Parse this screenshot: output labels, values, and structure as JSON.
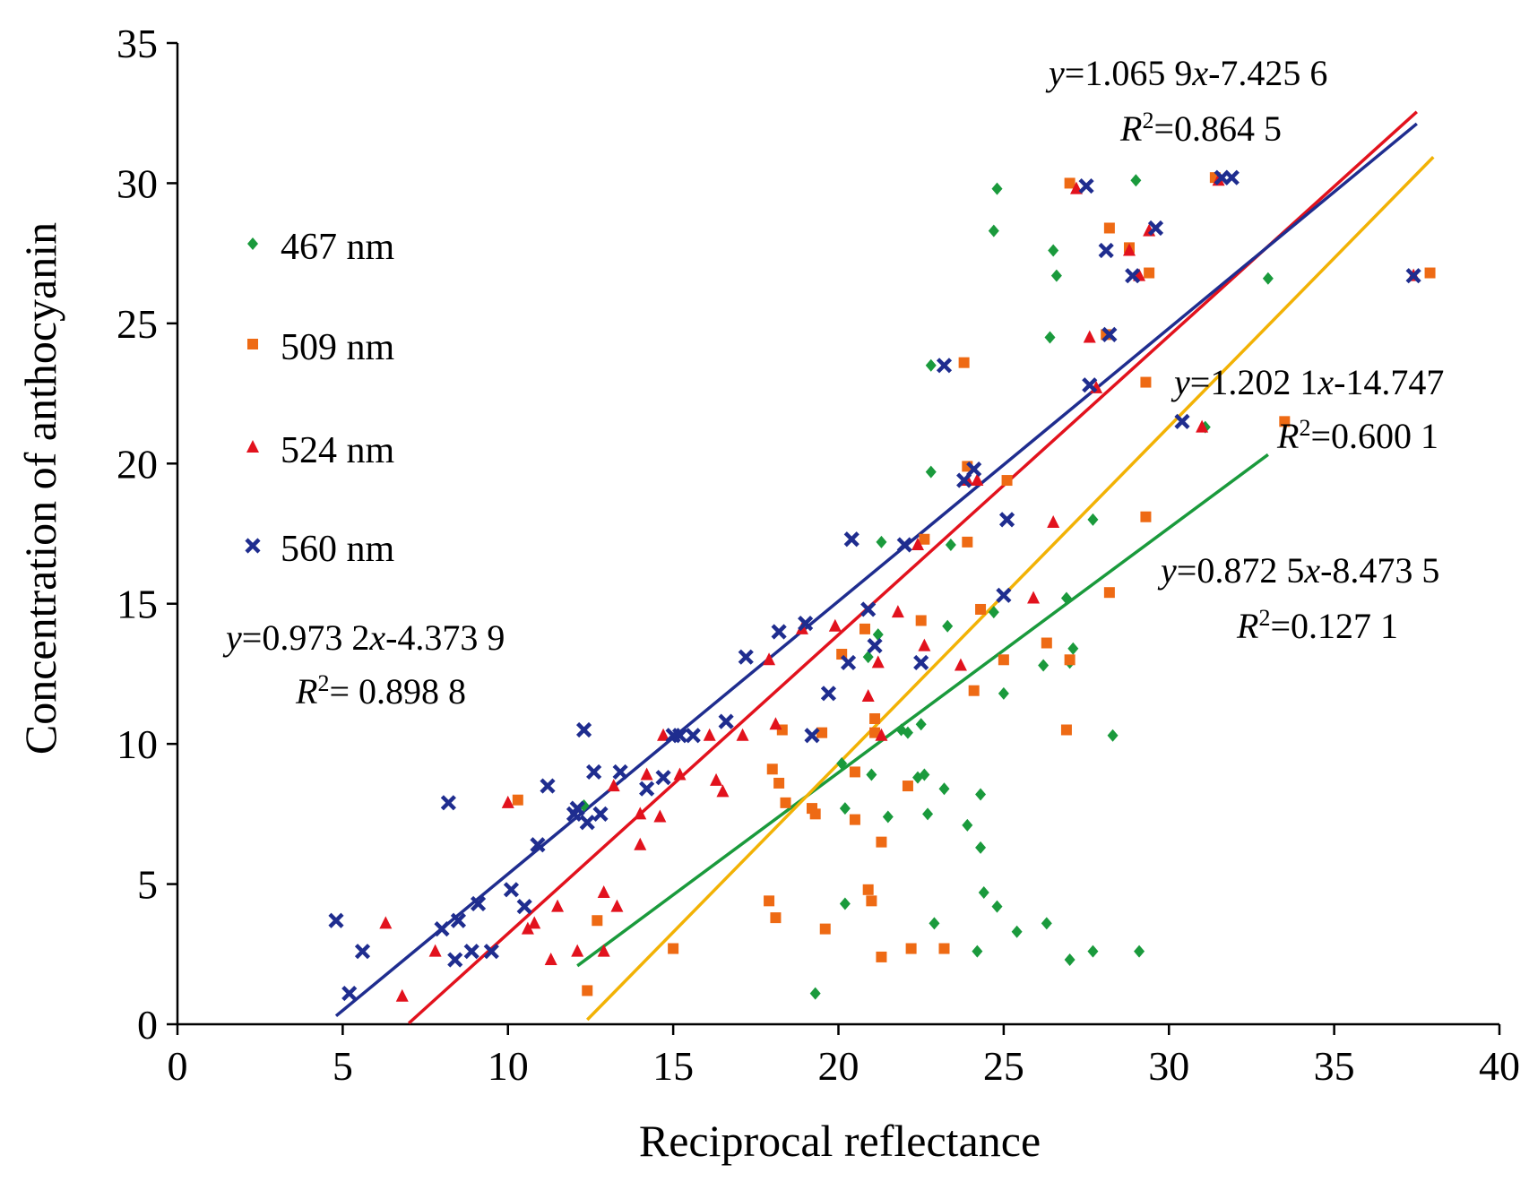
{
  "chart_data": {
    "type": "scatter",
    "title": "",
    "xlabel": "Reciprocal reflectance",
    "ylabel": "Concentration of anthocyanin",
    "xlim": [
      0,
      40
    ],
    "ylim": [
      0,
      35
    ],
    "xticks": [
      "0",
      "5",
      "10",
      "15",
      "20",
      "25",
      "30",
      "35",
      "40"
    ],
    "yticks": [
      "0",
      "5",
      "10",
      "15",
      "20",
      "25",
      "30",
      "35"
    ],
    "grid": false,
    "legend_position": "left",
    "series": [
      {
        "name": "467 nm",
        "color": "#1a9a3c",
        "marker": "diamond",
        "points": [
          [
            12.3,
            7.8
          ],
          [
            19.3,
            1.1
          ],
          [
            20.1,
            9.3
          ],
          [
            20.2,
            7.7
          ],
          [
            20.2,
            4.3
          ],
          [
            20.9,
            13.1
          ],
          [
            21.0,
            8.9
          ],
          [
            21.2,
            13.9
          ],
          [
            21.3,
            17.2
          ],
          [
            21.5,
            7.4
          ],
          [
            21.9,
            10.5
          ],
          [
            22.1,
            10.4
          ],
          [
            22.4,
            8.8
          ],
          [
            22.5,
            10.7
          ],
          [
            22.6,
            8.9
          ],
          [
            22.7,
            7.5
          ],
          [
            22.8,
            23.5
          ],
          [
            22.8,
            19.7
          ],
          [
            22.9,
            3.6
          ],
          [
            23.2,
            8.4
          ],
          [
            23.3,
            14.2
          ],
          [
            23.4,
            17.1
          ],
          [
            23.9,
            7.1
          ],
          [
            24.2,
            2.6
          ],
          [
            24.3,
            8.2
          ],
          [
            24.3,
            6.3
          ],
          [
            24.4,
            4.7
          ],
          [
            24.7,
            28.3
          ],
          [
            24.8,
            29.8
          ],
          [
            24.8,
            4.2
          ],
          [
            24.7,
            14.7
          ],
          [
            25.0,
            11.8
          ],
          [
            25.4,
            3.3
          ],
          [
            26.2,
            12.8
          ],
          [
            26.3,
            3.6
          ],
          [
            26.4,
            24.5
          ],
          [
            26.5,
            27.6
          ],
          [
            26.6,
            26.7
          ],
          [
            26.9,
            15.2
          ],
          [
            27.0,
            12.9
          ],
          [
            27.1,
            13.4
          ],
          [
            27.0,
            2.3
          ],
          [
            27.7,
            18.0
          ],
          [
            27.7,
            2.6
          ],
          [
            28.3,
            10.3
          ],
          [
            29.0,
            30.1
          ],
          [
            29.1,
            2.6
          ],
          [
            31.1,
            21.3
          ],
          [
            33.0,
            26.6
          ]
        ]
      },
      {
        "name": "509 nm",
        "color": "#ee6a14",
        "marker": "square",
        "points": [
          [
            10.3,
            8.0
          ],
          [
            12.4,
            1.2
          ],
          [
            12.7,
            3.7
          ],
          [
            15.0,
            2.7
          ],
          [
            17.9,
            4.4
          ],
          [
            18.0,
            9.1
          ],
          [
            18.1,
            3.8
          ],
          [
            18.2,
            8.6
          ],
          [
            18.3,
            10.5
          ],
          [
            18.4,
            7.9
          ],
          [
            19.2,
            7.7
          ],
          [
            19.3,
            7.5
          ],
          [
            19.5,
            10.4
          ],
          [
            19.6,
            3.4
          ],
          [
            20.1,
            13.2
          ],
          [
            20.5,
            9.0
          ],
          [
            20.5,
            7.3
          ],
          [
            20.8,
            14.1
          ],
          [
            20.9,
            4.8
          ],
          [
            21.0,
            4.4
          ],
          [
            21.1,
            10.9
          ],
          [
            21.1,
            10.4
          ],
          [
            21.3,
            6.5
          ],
          [
            21.3,
            2.4
          ],
          [
            22.1,
            8.5
          ],
          [
            22.2,
            2.7
          ],
          [
            22.5,
            14.4
          ],
          [
            22.6,
            17.3
          ],
          [
            23.2,
            2.7
          ],
          [
            23.8,
            23.6
          ],
          [
            23.9,
            17.2
          ],
          [
            23.9,
            19.9
          ],
          [
            24.1,
            11.9
          ],
          [
            24.3,
            14.8
          ],
          [
            25.0,
            13.0
          ],
          [
            25.1,
            19.4
          ],
          [
            26.3,
            13.6
          ],
          [
            26.9,
            10.5
          ],
          [
            27.0,
            13.0
          ],
          [
            27.0,
            30.0
          ],
          [
            28.1,
            24.6
          ],
          [
            28.2,
            28.4
          ],
          [
            28.2,
            15.4
          ],
          [
            28.8,
            27.7
          ],
          [
            29.3,
            22.9
          ],
          [
            29.3,
            18.1
          ],
          [
            29.4,
            26.8
          ],
          [
            31.4,
            30.2
          ],
          [
            33.5,
            21.5
          ],
          [
            37.9,
            26.8
          ]
        ]
      },
      {
        "name": "524 nm",
        "color": "#e2121d",
        "marker": "triangle",
        "points": [
          [
            6.3,
            3.6
          ],
          [
            6.8,
            1.0
          ],
          [
            7.8,
            2.6
          ],
          [
            10.0,
            7.9
          ],
          [
            10.6,
            3.4
          ],
          [
            10.8,
            3.6
          ],
          [
            11.3,
            2.3
          ],
          [
            11.5,
            4.2
          ],
          [
            12.1,
            2.6
          ],
          [
            12.9,
            4.7
          ],
          [
            12.9,
            2.6
          ],
          [
            13.2,
            8.5
          ],
          [
            13.3,
            4.2
          ],
          [
            14.0,
            6.4
          ],
          [
            14.0,
            7.5
          ],
          [
            14.2,
            8.9
          ],
          [
            14.6,
            7.4
          ],
          [
            14.7,
            10.3
          ],
          [
            15.2,
            8.9
          ],
          [
            16.1,
            10.3
          ],
          [
            16.3,
            8.7
          ],
          [
            16.5,
            8.3
          ],
          [
            17.1,
            10.3
          ],
          [
            17.9,
            13.0
          ],
          [
            18.1,
            10.7
          ],
          [
            18.9,
            14.1
          ],
          [
            19.9,
            14.2
          ],
          [
            20.9,
            11.7
          ],
          [
            21.2,
            12.9
          ],
          [
            21.3,
            10.3
          ],
          [
            21.8,
            14.7
          ],
          [
            22.4,
            17.1
          ],
          [
            22.6,
            13.5
          ],
          [
            23.7,
            12.8
          ],
          [
            23.9,
            19.4
          ],
          [
            24.2,
            19.4
          ],
          [
            25.9,
            15.2
          ],
          [
            26.5,
            17.9
          ],
          [
            27.2,
            29.8
          ],
          [
            27.6,
            24.5
          ],
          [
            27.8,
            22.7
          ],
          [
            28.8,
            27.6
          ],
          [
            29.1,
            26.7
          ],
          [
            29.4,
            28.3
          ],
          [
            31.0,
            21.3
          ],
          [
            31.5,
            30.1
          ],
          [
            37.4,
            26.7
          ]
        ]
      },
      {
        "name": "560 nm",
        "color": "#1f2d8f",
        "marker": "x",
        "points": [
          [
            4.8,
            3.7
          ],
          [
            5.2,
            1.1
          ],
          [
            5.6,
            2.6
          ],
          [
            8.2,
            7.9
          ],
          [
            8.0,
            3.4
          ],
          [
            8.4,
            2.3
          ],
          [
            8.5,
            3.7
          ],
          [
            8.9,
            2.6
          ],
          [
            9.1,
            4.3
          ],
          [
            9.5,
            2.6
          ],
          [
            10.1,
            4.8
          ],
          [
            10.5,
            4.2
          ],
          [
            10.9,
            6.4
          ],
          [
            11.2,
            8.5
          ],
          [
            12.0,
            7.5
          ],
          [
            12.1,
            7.7
          ],
          [
            12.3,
            10.5
          ],
          [
            12.4,
            7.2
          ],
          [
            12.6,
            9.0
          ],
          [
            12.8,
            7.5
          ],
          [
            13.4,
            9.0
          ],
          [
            14.2,
            8.4
          ],
          [
            14.7,
            8.8
          ],
          [
            15.0,
            10.3
          ],
          [
            15.2,
            10.3
          ],
          [
            15.6,
            10.3
          ],
          [
            16.6,
            10.8
          ],
          [
            17.2,
            13.1
          ],
          [
            18.2,
            14.0
          ],
          [
            19.0,
            14.3
          ],
          [
            19.2,
            10.3
          ],
          [
            19.7,
            11.8
          ],
          [
            20.3,
            12.9
          ],
          [
            20.4,
            17.3
          ],
          [
            20.9,
            14.8
          ],
          [
            21.1,
            13.5
          ],
          [
            22.0,
            17.1
          ],
          [
            22.5,
            12.9
          ],
          [
            23.2,
            23.5
          ],
          [
            23.8,
            19.4
          ],
          [
            24.1,
            19.8
          ],
          [
            25.0,
            15.3
          ],
          [
            25.1,
            18.0
          ],
          [
            27.5,
            29.9
          ],
          [
            27.6,
            22.8
          ],
          [
            28.1,
            27.6
          ],
          [
            28.2,
            24.6
          ],
          [
            28.9,
            26.7
          ],
          [
            29.6,
            28.4
          ],
          [
            30.4,
            21.5
          ],
          [
            31.6,
            30.2
          ],
          [
            31.9,
            30.2
          ],
          [
            37.4,
            26.7
          ]
        ]
      }
    ],
    "fits": [
      {
        "series": "467 nm",
        "color": "#1a9a3c",
        "x": [
          12.1,
          33.0
        ],
        "eq_prefix": "y",
        "eq_main": "=0.872 5",
        "eq_var": "x",
        "eq_rest": "-8.473 5",
        "r2_label": "R",
        "r2_sup": "2",
        "r2_value": "=0.127 1"
      },
      {
        "series": "509 nm",
        "color": "#f2b205",
        "x": [
          12.4,
          38.0
        ],
        "eq_prefix": "y",
        "eq_main": "=1.202 1",
        "eq_var": "x",
        "eq_rest": "-14.747",
        "r2_label": "R",
        "r2_sup": "2",
        "r2_value": "=0.600 1"
      },
      {
        "series": "524 nm",
        "color": "#e2121d",
        "x": [
          7.0,
          37.5
        ],
        "eq_prefix": "y",
        "eq_main": "=1.065 9",
        "eq_var": "x",
        "eq_rest": "-7.425 6",
        "r2_label": "R",
        "r2_sup": "2",
        "r2_value": "=0.864 5"
      },
      {
        "series": "560 nm",
        "color": "#1f2d8f",
        "x": [
          4.8,
          37.5
        ],
        "eq_prefix": "y",
        "eq_main": "=0.973 2",
        "eq_var": "x",
        "eq_rest": "-4.373 9",
        "r2_label": "R",
        "r2_sup": "2",
        "r2_value": "= 0.898 8"
      }
    ]
  }
}
